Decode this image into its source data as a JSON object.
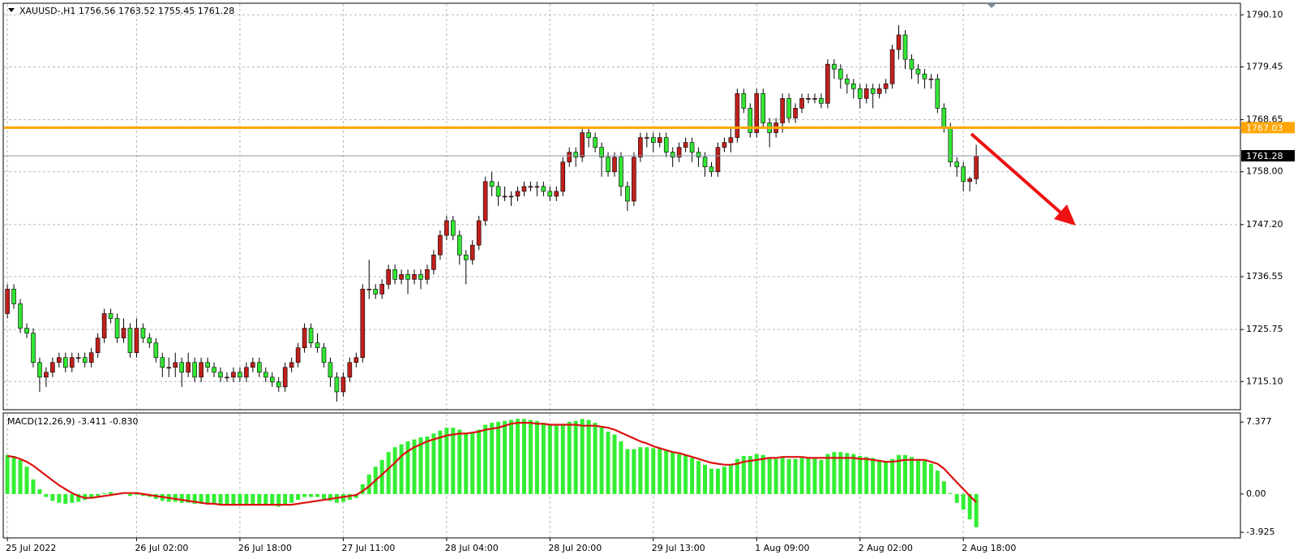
{
  "chart_data": [
    {
      "type": "candlestick",
      "title": "XAUUSD-,H1  1756.56 1763.52 1755.45 1761.28",
      "up_color": "#c0201c",
      "down_color": "#33e633",
      "grid": true,
      "xlim": [
        -0.64,
        190.9
      ],
      "xticks": [
        {
          "value": 0,
          "label": "25 Jul 2022"
        },
        {
          "value": 20,
          "label": "26 Jul 02:00"
        },
        {
          "value": 36,
          "label": "26 Jul 18:00"
        },
        {
          "value": 52,
          "label": "27 Jul 11:00"
        },
        {
          "value": 68,
          "label": "28 Jul 04:00"
        },
        {
          "value": 84,
          "label": "28 Jul 20:00"
        },
        {
          "value": 100,
          "label": "29 Jul 13:00"
        },
        {
          "value": 116,
          "label": "1 Aug 09:00"
        },
        {
          "value": 132,
          "label": "2 Aug 02:00"
        },
        {
          "value": 148,
          "label": "2 Aug 18:00"
        }
      ],
      "ylim": [
        1709.34,
        1792.47
      ],
      "yticks": [
        {
          "value": 1790.1,
          "label": "1790.10"
        },
        1779.45,
        1768.65,
        {
          "value": 1758,
          "label": "1758.00"
        },
        {
          "value": 1747.2,
          "label": "1747.20"
        },
        1736.55,
        1725.75,
        {
          "value": 1715.1,
          "label": "1715.10"
        }
      ],
      "level_line": {
        "value": 1767.03,
        "color": "#ffa500"
      },
      "last_price": 1761.28,
      "open": [
        1729,
        1734,
        1731,
        1726,
        1725,
        1719,
        1716,
        1717,
        1719,
        1720,
        1718,
        1720,
        1720,
        1719,
        1721,
        1724,
        1729,
        1728,
        1724,
        1726,
        1721,
        1726,
        1724,
        1723,
        1720,
        1718,
        1718,
        1719,
        1717,
        1719,
        1716,
        1719,
        1718,
        1717,
        1716,
        1716,
        1717,
        1716,
        1718,
        1719,
        1717,
        1716,
        1715,
        1714,
        1718,
        1719,
        1722,
        1726,
        1723,
        1722,
        1719,
        1716,
        1713,
        1716,
        1719,
        1720,
        1734,
        1734,
        1733,
        1735,
        1738,
        1736,
        1737,
        1736,
        1737,
        1736,
        1738,
        1741,
        1745,
        1748,
        1745,
        1741,
        1740,
        1743,
        1748,
        1756,
        1755,
        1753,
        1753,
        1753,
        1754,
        1755,
        1755,
        1755,
        1754,
        1753,
        1754,
        1760,
        1762,
        1761,
        1766,
        1765,
        1763,
        1761,
        1758,
        1761,
        1755,
        1752,
        1761,
        1765,
        1765,
        1764,
        1765,
        1762,
        1761,
        1763,
        1764,
        1762,
        1761,
        1759,
        1758,
        1763,
        1764,
        1765,
        1774,
        1771,
        1766,
        1774,
        1768,
        1766,
        1768,
        1773,
        1769,
        1771,
        1773,
        1773,
        1773,
        1772,
        1780,
        1779,
        1777,
        1776,
        1775,
        1773,
        1775,
        1774,
        1775,
        1776,
        1783,
        1786,
        1781,
        1779,
        1778,
        1777,
        1777,
        1771,
        1767,
        1760,
        1759,
        1756,
        1756.56
      ],
      "high": [
        1735,
        1735,
        1732,
        1727,
        1726,
        1720,
        1718,
        1720,
        1721,
        1721,
        1721,
        1721,
        1721,
        1722,
        1725,
        1730,
        1730,
        1729,
        1728,
        1727,
        1728,
        1727,
        1725,
        1724,
        1721,
        1720,
        1721,
        1720,
        1721,
        1720,
        1720,
        1720,
        1719,
        1718,
        1717,
        1718,
        1718,
        1719,
        1720,
        1720,
        1718,
        1717,
        1716,
        1719,
        1720,
        1723,
        1727,
        1727,
        1725,
        1723,
        1720,
        1717,
        1717,
        1720,
        1721,
        1735,
        1740,
        1735,
        1736,
        1739,
        1739,
        1738,
        1738,
        1738,
        1738,
        1739,
        1742,
        1746,
        1749,
        1749,
        1746,
        1742,
        1744,
        1749,
        1757,
        1758,
        1756,
        1755,
        1754,
        1755,
        1756,
        1756,
        1756,
        1756,
        1755,
        1755,
        1761,
        1763,
        1763,
        1767,
        1767,
        1766,
        1764,
        1762,
        1762,
        1762,
        1756,
        1762,
        1766,
        1766,
        1766,
        1766,
        1766,
        1763,
        1764,
        1765,
        1765,
        1763,
        1762,
        1760,
        1764,
        1765,
        1767,
        1775,
        1775,
        1772,
        1775,
        1775,
        1769,
        1769,
        1774,
        1774,
        1772,
        1774,
        1774,
        1774,
        1774,
        1781,
        1781,
        1780,
        1778,
        1777,
        1776,
        1776,
        1776,
        1776,
        1777,
        1784,
        1788,
        1787,
        1782,
        1780,
        1779,
        1778,
        1778,
        1772,
        1768,
        1761,
        1760,
        1757,
        1763.52
      ],
      "low": [
        1728,
        1730,
        1725,
        1724,
        1718,
        1713,
        1714,
        1716,
        1718,
        1717,
        1717,
        1719,
        1718,
        1718,
        1720,
        1723,
        1727,
        1723,
        1723,
        1720,
        1720,
        1723,
        1722,
        1719,
        1716,
        1716,
        1716,
        1714,
        1716,
        1715,
        1715,
        1717,
        1716,
        1715,
        1715,
        1715,
        1715,
        1715,
        1717,
        1716,
        1715,
        1714,
        1713,
        1713,
        1717,
        1718,
        1721,
        1722,
        1721,
        1718,
        1714,
        1711,
        1712,
        1715,
        1718,
        1719,
        1732,
        1732,
        1732,
        1734,
        1735,
        1735,
        1733,
        1735,
        1734,
        1735,
        1737,
        1740,
        1744,
        1744,
        1739,
        1735,
        1739,
        1742,
        1747,
        1753,
        1751,
        1752,
        1751,
        1752,
        1753,
        1754,
        1753,
        1753,
        1752,
        1752,
        1753,
        1759,
        1759,
        1760,
        1763,
        1762,
        1757,
        1757,
        1757,
        1753,
        1750,
        1751,
        1760,
        1763,
        1762,
        1763,
        1761,
        1759,
        1760,
        1762,
        1760,
        1759,
        1757,
        1757,
        1757,
        1762,
        1762,
        1764,
        1770,
        1765,
        1765,
        1767,
        1763,
        1765,
        1766,
        1768,
        1768,
        1770,
        1772,
        1772,
        1771,
        1771,
        1777,
        1775,
        1774,
        1773,
        1771,
        1772,
        1771,
        1773,
        1774,
        1775,
        1781,
        1779,
        1777,
        1776,
        1775,
        1775,
        1770,
        1766,
        1759,
        1757,
        1754,
        1754,
        1755.45
      ],
      "close": [
        1734,
        1731,
        1726,
        1725,
        1719,
        1716,
        1717,
        1719,
        1720,
        1718,
        1720,
        1720,
        1719,
        1721,
        1724,
        1729,
        1728,
        1724,
        1726,
        1721,
        1726,
        1724,
        1723,
        1720,
        1718,
        1718,
        1719,
        1717,
        1719,
        1716,
        1719,
        1718,
        1717,
        1716,
        1716,
        1717,
        1716,
        1718,
        1719,
        1717,
        1716,
        1715,
        1714,
        1718,
        1719,
        1722,
        1726,
        1723,
        1722,
        1719,
        1716,
        1713,
        1716,
        1719,
        1720,
        1734,
        1734,
        1733,
        1735,
        1738,
        1736,
        1737,
        1736,
        1737,
        1736,
        1738,
        1741,
        1745,
        1748,
        1745,
        1741,
        1740,
        1743,
        1748,
        1756,
        1755,
        1753,
        1753,
        1753,
        1754,
        1755,
        1755,
        1755,
        1754,
        1753,
        1754,
        1760,
        1762,
        1761,
        1766,
        1765,
        1763,
        1761,
        1758,
        1761,
        1755,
        1752,
        1761,
        1765,
        1765,
        1764,
        1765,
        1762,
        1761,
        1763,
        1764,
        1762,
        1761,
        1759,
        1758,
        1763,
        1764,
        1765,
        1774,
        1771,
        1766,
        1774,
        1768,
        1766,
        1768,
        1773,
        1769,
        1771,
        1773,
        1773,
        1773,
        1772,
        1780,
        1779,
        1777,
        1776,
        1775,
        1773,
        1775,
        1774,
        1775,
        1776,
        1783,
        1786,
        1781,
        1779,
        1778,
        1777,
        1777,
        1771,
        1767,
        1760,
        1759,
        1756,
        1756.56,
        1761.28
      ]
    },
    {
      "type": "bar",
      "title": "MACD(12,26,9) -3.411 -0.830",
      "color": "#33ee33",
      "ylim": [
        -4.5,
        8.31
      ],
      "yticks": [
        7.377,
        {
          "value": 0,
          "label": "0.00"
        },
        -3.925
      ],
      "values": [
        4.0,
        3.9,
        3.5,
        2.8,
        1.5,
        0.5,
        -0.3,
        -0.7,
        -0.9,
        -1.0,
        -0.9,
        -0.8,
        -0.6,
        -0.4,
        -0.2,
        0.1,
        0.2,
        0.1,
        0.1,
        -0.2,
        -0.1,
        -0.2,
        -0.3,
        -0.5,
        -0.7,
        -0.8,
        -0.8,
        -0.9,
        -0.9,
        -1.0,
        -1.0,
        -1.0,
        -1.1,
        -1.1,
        -1.1,
        -1.1,
        -1.1,
        -1.0,
        -1.0,
        -1.0,
        -1.1,
        -1.2,
        -1.3,
        -1.1,
        -0.9,
        -0.6,
        -0.3,
        -0.3,
        -0.3,
        -0.5,
        -0.7,
        -0.9,
        -0.8,
        -0.6,
        -0.4,
        1.0,
        2.0,
        2.8,
        3.5,
        4.3,
        4.8,
        5.1,
        5.4,
        5.6,
        5.8,
        5.9,
        6.2,
        6.5,
        6.8,
        6.8,
        6.6,
        6.3,
        6.3,
        6.6,
        7.1,
        7.3,
        7.4,
        7.5,
        7.6,
        7.7,
        7.7,
        7.6,
        7.5,
        7.3,
        7.1,
        7.0,
        7.2,
        7.4,
        7.5,
        7.7,
        7.6,
        7.3,
        6.9,
        6.4,
        6.1,
        5.4,
        4.6,
        4.6,
        4.8,
        4.8,
        4.7,
        4.7,
        4.5,
        4.3,
        4.1,
        4.0,
        3.7,
        3.4,
        3.0,
        2.6,
        2.6,
        2.8,
        3.0,
        3.6,
        3.9,
        3.9,
        4.1,
        4.0,
        3.7,
        3.6,
        3.8,
        3.6,
        3.6,
        3.7,
        3.7,
        3.6,
        3.5,
        4.1,
        4.3,
        4.3,
        4.2,
        4.1,
        3.9,
        3.8,
        3.7,
        3.5,
        3.3,
        3.6,
        4.0,
        4.0,
        3.8,
        3.6,
        3.4,
        3.1,
        2.4,
        1.3,
        0.1,
        -0.9,
        -1.6,
        -2.6,
        -3.411
      ],
      "line": {
        "color": "#dd1111",
        "values": [
          3.9,
          3.8,
          3.6,
          3.3,
          2.9,
          2.4,
          1.9,
          1.4,
          0.9,
          0.5,
          0.1,
          -0.2,
          -0.4,
          -0.4,
          -0.3,
          -0.2,
          -0.1,
          0.0,
          0.1,
          0.1,
          0.1,
          0.0,
          -0.1,
          -0.2,
          -0.3,
          -0.4,
          -0.5,
          -0.6,
          -0.7,
          -0.8,
          -0.9,
          -1.0,
          -1.0,
          -1.1,
          -1.1,
          -1.1,
          -1.1,
          -1.1,
          -1.1,
          -1.1,
          -1.1,
          -1.1,
          -1.1,
          -1.1,
          -1.1,
          -1.0,
          -0.9,
          -0.8,
          -0.7,
          -0.6,
          -0.5,
          -0.4,
          -0.3,
          -0.2,
          -0.1,
          0.3,
          0.8,
          1.4,
          2.0,
          2.6,
          3.2,
          3.9,
          4.4,
          4.8,
          5.1,
          5.4,
          5.6,
          5.8,
          6.0,
          6.1,
          6.2,
          6.2,
          6.3,
          6.4,
          6.6,
          6.7,
          6.8,
          7.0,
          7.2,
          7.3,
          7.3,
          7.3,
          7.2,
          7.2,
          7.1,
          7.1,
          7.1,
          7.1,
          7.1,
          7.0,
          7.0,
          7.0,
          6.9,
          6.8,
          6.6,
          6.3,
          6.0,
          5.7,
          5.4,
          5.2,
          4.9,
          4.7,
          4.5,
          4.3,
          4.2,
          4.0,
          3.8,
          3.6,
          3.4,
          3.2,
          3.1,
          3.0,
          3.0,
          3.1,
          3.3,
          3.4,
          3.5,
          3.6,
          3.7,
          3.7,
          3.8,
          3.8,
          3.8,
          3.8,
          3.7,
          3.7,
          3.7,
          3.7,
          3.7,
          3.7,
          3.7,
          3.7,
          3.6,
          3.6,
          3.5,
          3.4,
          3.3,
          3.3,
          3.4,
          3.5,
          3.5,
          3.5,
          3.5,
          3.3,
          3.1,
          2.6,
          1.9,
          1.2,
          0.5,
          -0.2,
          -0.83
        ]
      }
    }
  ]
}
